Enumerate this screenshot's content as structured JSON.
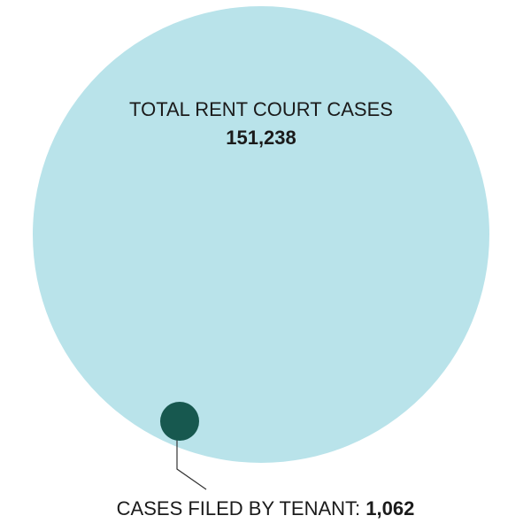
{
  "chart_data": {
    "type": "bubble",
    "series": [
      {
        "label": "TOTAL RENT COURT CASES",
        "value": 151238,
        "value_text": "151,238",
        "color": "#b9e3ea"
      },
      {
        "label": "CASES FILED BY TENANT:",
        "value": 1062,
        "value_text": "1,062",
        "color": "#17584f"
      }
    ]
  }
}
